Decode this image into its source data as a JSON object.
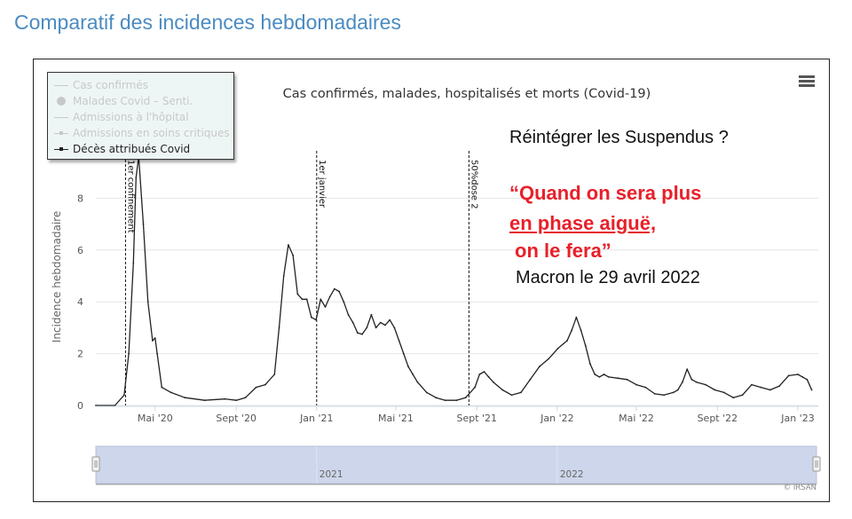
{
  "page": {
    "heading": "Comparatif des incidences hebdomadaires",
    "menu_icon": "hamburger-menu-icon"
  },
  "annotations": {
    "question": "Réintégrer les Suspendus ?",
    "quote_line1": "“Quand on sera plus",
    "quote_line2": "en phase aiguë,",
    "quote_line3": "on le fera”",
    "attribution": "Macron le 29 avril  2022",
    "quote_color": "#e8202a"
  },
  "chart_data": {
    "type": "line",
    "title": "Cas confirmés, malades, hospitalisés et morts (Covid-19)",
    "ylabel": "Incidence hebdomadaire",
    "xlabel": "",
    "ylim": [
      0,
      10
    ],
    "yticks": [
      0,
      2,
      4,
      6,
      8
    ],
    "xlim": [
      "2020-02-01",
      "2023-02-01"
    ],
    "xticks": [
      {
        "date": "2020-05-01",
        "label": "Mai '20"
      },
      {
        "date": "2020-09-01",
        "label": "Sept '20"
      },
      {
        "date": "2021-01-01",
        "label": "Jan '21"
      },
      {
        "date": "2021-05-01",
        "label": "Mai '21"
      },
      {
        "date": "2021-09-01",
        "label": "Sept '21"
      },
      {
        "date": "2022-01-01",
        "label": "Jan '22"
      },
      {
        "date": "2022-05-01",
        "label": "Mai '22"
      },
      {
        "date": "2022-09-01",
        "label": "Sept '22"
      },
      {
        "date": "2023-01-01",
        "label": "Jan '23"
      }
    ],
    "grid": true,
    "legend_position": "top-left",
    "legend": [
      {
        "name": "Cas confirmés",
        "visible": false,
        "symbol": "line"
      },
      {
        "name": "Malades Covid – Senti.",
        "visible": false,
        "symbol": "dot"
      },
      {
        "name": "Admissions à l'hôpital",
        "visible": false,
        "symbol": "line"
      },
      {
        "name": "Admissions en soins critiques",
        "visible": false,
        "symbol": "line-point"
      },
      {
        "name": "Décès attribués Covid",
        "visible": true,
        "symbol": "line-point"
      }
    ],
    "events": [
      {
        "date": "2020-03-17",
        "label": "1er confinement"
      },
      {
        "date": "2021-01-01",
        "label": "1er janvier"
      },
      {
        "date": "2021-08-20",
        "label": "50%dose 2"
      }
    ],
    "series": [
      {
        "name": "Décès attribués Covid",
        "color": "#222222",
        "points": [
          [
            "2020-02-01",
            0
          ],
          [
            "2020-03-01",
            0
          ],
          [
            "2020-03-15",
            0.4
          ],
          [
            "2020-03-22",
            2.0
          ],
          [
            "2020-03-29",
            5.5
          ],
          [
            "2020-04-02",
            8.8
          ],
          [
            "2020-04-06",
            9.6
          ],
          [
            "2020-04-13",
            7.0
          ],
          [
            "2020-04-20",
            4.0
          ],
          [
            "2020-04-27",
            2.5
          ],
          [
            "2020-05-01",
            2.6
          ],
          [
            "2020-05-04",
            2.0
          ],
          [
            "2020-05-11",
            0.7
          ],
          [
            "2020-05-25",
            0.5
          ],
          [
            "2020-06-15",
            0.3
          ],
          [
            "2020-07-15",
            0.2
          ],
          [
            "2020-08-15",
            0.25
          ],
          [
            "2020-09-01",
            0.2
          ],
          [
            "2020-09-15",
            0.3
          ],
          [
            "2020-10-01",
            0.7
          ],
          [
            "2020-10-15",
            0.8
          ],
          [
            "2020-10-29",
            1.2
          ],
          [
            "2020-11-05",
            3.0
          ],
          [
            "2020-11-12",
            5.0
          ],
          [
            "2020-11-19",
            6.2
          ],
          [
            "2020-11-26",
            5.8
          ],
          [
            "2020-12-03",
            4.3
          ],
          [
            "2020-12-10",
            4.1
          ],
          [
            "2020-12-17",
            4.1
          ],
          [
            "2020-12-24",
            3.4
          ],
          [
            "2020-12-31",
            3.3
          ],
          [
            "2021-01-07",
            4.1
          ],
          [
            "2021-01-14",
            3.8
          ],
          [
            "2021-01-21",
            4.2
          ],
          [
            "2021-01-28",
            4.5
          ],
          [
            "2021-02-04",
            4.4
          ],
          [
            "2021-02-11",
            4.0
          ],
          [
            "2021-02-18",
            3.5
          ],
          [
            "2021-02-25",
            3.2
          ],
          [
            "2021-03-04",
            2.8
          ],
          [
            "2021-03-11",
            2.75
          ],
          [
            "2021-03-18",
            3.0
          ],
          [
            "2021-03-25",
            3.5
          ],
          [
            "2021-04-01",
            3.0
          ],
          [
            "2021-04-08",
            3.2
          ],
          [
            "2021-04-15",
            3.1
          ],
          [
            "2021-04-22",
            3.3
          ],
          [
            "2021-04-29",
            3.0
          ],
          [
            "2021-05-06",
            2.5
          ],
          [
            "2021-05-13",
            2.0
          ],
          [
            "2021-05-20",
            1.5
          ],
          [
            "2021-05-27",
            1.2
          ],
          [
            "2021-06-03",
            0.9
          ],
          [
            "2021-06-17",
            0.5
          ],
          [
            "2021-07-01",
            0.3
          ],
          [
            "2021-07-15",
            0.2
          ],
          [
            "2021-08-01",
            0.2
          ],
          [
            "2021-08-15",
            0.3
          ],
          [
            "2021-08-29",
            0.7
          ],
          [
            "2021-09-05",
            1.2
          ],
          [
            "2021-09-12",
            1.3
          ],
          [
            "2021-09-19",
            1.1
          ],
          [
            "2021-09-26",
            0.9
          ],
          [
            "2021-10-10",
            0.6
          ],
          [
            "2021-10-24",
            0.4
          ],
          [
            "2021-11-07",
            0.5
          ],
          [
            "2021-11-21",
            1.0
          ],
          [
            "2021-12-05",
            1.5
          ],
          [
            "2021-12-19",
            1.8
          ],
          [
            "2022-01-02",
            2.2
          ],
          [
            "2022-01-16",
            2.5
          ],
          [
            "2022-01-23",
            2.9
          ],
          [
            "2022-01-30",
            3.4
          ],
          [
            "2022-02-06",
            2.9
          ],
          [
            "2022-02-13",
            2.3
          ],
          [
            "2022-02-20",
            1.6
          ],
          [
            "2022-02-27",
            1.2
          ],
          [
            "2022-03-06",
            1.1
          ],
          [
            "2022-03-13",
            1.2
          ],
          [
            "2022-03-20",
            1.1
          ],
          [
            "2022-04-03",
            1.05
          ],
          [
            "2022-04-17",
            1.0
          ],
          [
            "2022-05-01",
            0.8
          ],
          [
            "2022-05-15",
            0.7
          ],
          [
            "2022-05-29",
            0.45
          ],
          [
            "2022-06-12",
            0.4
          ],
          [
            "2022-06-26",
            0.5
          ],
          [
            "2022-07-03",
            0.6
          ],
          [
            "2022-07-10",
            0.9
          ],
          [
            "2022-07-17",
            1.4
          ],
          [
            "2022-07-24",
            1.0
          ],
          [
            "2022-07-31",
            0.9
          ],
          [
            "2022-08-14",
            0.8
          ],
          [
            "2022-08-28",
            0.6
          ],
          [
            "2022-09-11",
            0.5
          ],
          [
            "2022-09-25",
            0.3
          ],
          [
            "2022-10-09",
            0.4
          ],
          [
            "2022-10-23",
            0.8
          ],
          [
            "2022-11-06",
            0.7
          ],
          [
            "2022-11-20",
            0.6
          ],
          [
            "2022-12-04",
            0.75
          ],
          [
            "2022-12-18",
            1.15
          ],
          [
            "2023-01-01",
            1.2
          ],
          [
            "2023-01-08",
            1.1
          ],
          [
            "2023-01-15",
            1.0
          ],
          [
            "2023-01-22",
            0.6
          ]
        ]
      }
    ],
    "navigator": {
      "labels": [
        "2021",
        "2022"
      ],
      "credit": "© IRSAN"
    }
  }
}
